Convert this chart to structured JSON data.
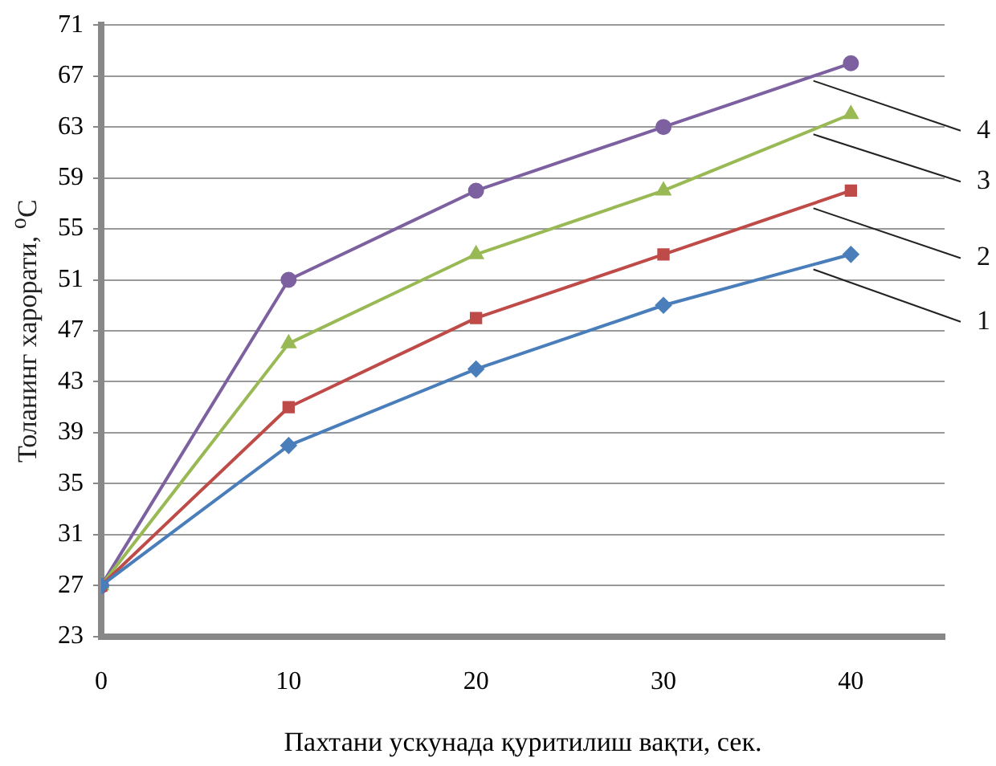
{
  "chart_data": {
    "type": "line",
    "xlabel": "Пахтани ускунада қуритилиш вақти, сек.",
    "ylabel": "Толанинг харорати, $^{o}$C",
    "x": [
      0,
      10,
      20,
      30,
      40
    ],
    "xlim": [
      0,
      45
    ],
    "xticks": [
      0,
      10,
      20,
      30,
      40
    ],
    "ylim": [
      23,
      71
    ],
    "yticks": [
      23,
      27,
      31,
      35,
      39,
      43,
      47,
      51,
      55,
      59,
      63,
      67,
      71
    ],
    "grid": "y",
    "legend": false,
    "series": [
      {
        "name": "1",
        "color": "#4a7ebb",
        "marker": "diamond",
        "values": [
          27,
          38,
          44,
          49,
          53
        ]
      },
      {
        "name": "2",
        "color": "#be4b48",
        "marker": "square",
        "values": [
          27,
          41,
          48,
          53,
          58
        ]
      },
      {
        "name": "3",
        "color": "#98b954",
        "marker": "triangle",
        "values": [
          27,
          46,
          53,
          58,
          64
        ]
      },
      {
        "name": "4",
        "color": "#7d60a0",
        "marker": "circle",
        "values": [
          27,
          51,
          58,
          63,
          68
        ]
      }
    ]
  }
}
